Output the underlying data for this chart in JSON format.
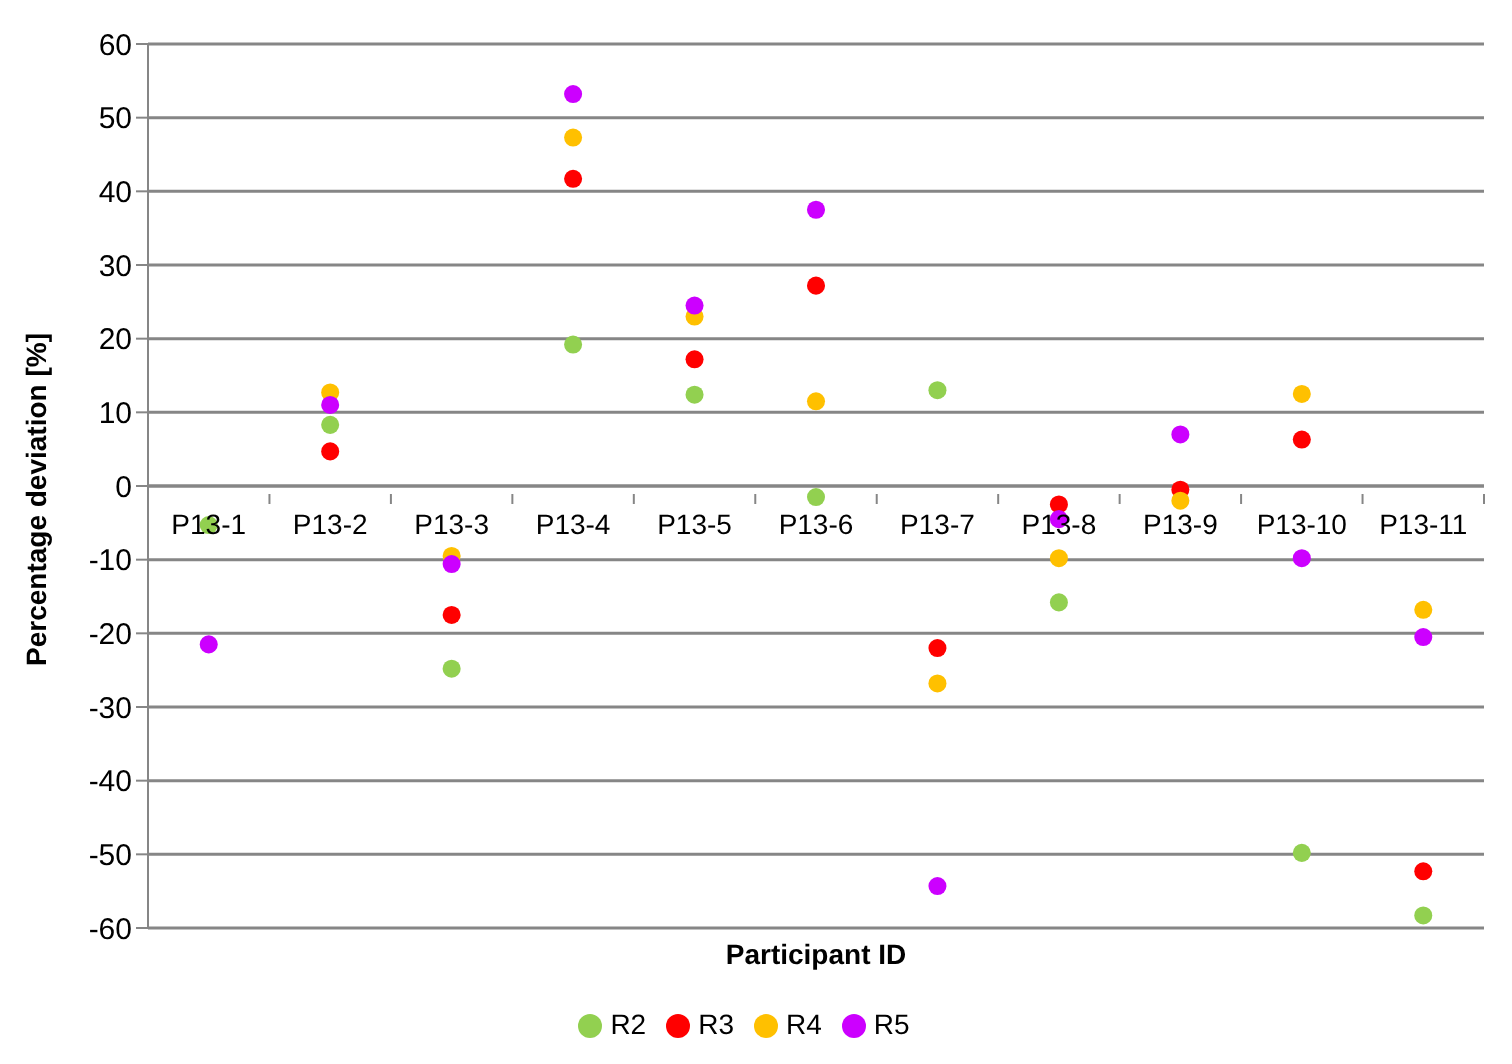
{
  "chart_data": {
    "type": "scatter",
    "xlabel": "Participant ID",
    "ylabel": "Percentage deviation [%]",
    "categories": [
      "P13-1",
      "P13-2",
      "P13-3",
      "P13-4",
      "P13-5",
      "P13-6",
      "P13-7",
      "P13-8",
      "P13-9",
      "P13-10",
      "P13-11"
    ],
    "series": [
      {
        "name": "R2",
        "color": "#92d050",
        "values": [
          -5.3,
          8.3,
          -24.8,
          19.2,
          12.4,
          -1.5,
          13,
          -15.8,
          null,
          -49.8,
          -58.3
        ]
      },
      {
        "name": "R3",
        "color": "#ff0000",
        "values": [
          null,
          4.7,
          -17.5,
          41.7,
          17.2,
          27.2,
          -22,
          -2.5,
          -0.5,
          6.3,
          -52.3
        ]
      },
      {
        "name": "R4",
        "color": "#ffc000",
        "values": [
          null,
          12.7,
          -9.5,
          47.3,
          23,
          11.5,
          -26.8,
          -9.8,
          -2,
          12.5,
          -16.8
        ]
      },
      {
        "name": "R5",
        "color": "#cc00ff",
        "values": [
          -21.5,
          11,
          -10.6,
          53.2,
          24.5,
          37.5,
          -54.3,
          -4.5,
          7,
          -9.8,
          -20.5
        ]
      }
    ],
    "ylim": [
      -60,
      60
    ],
    "yticks": [
      -60,
      -50,
      -40,
      -30,
      -20,
      -10,
      0,
      10,
      20,
      30,
      40,
      50,
      60
    ],
    "grid": "y",
    "legend": "bottom",
    "marker": "circle"
  }
}
